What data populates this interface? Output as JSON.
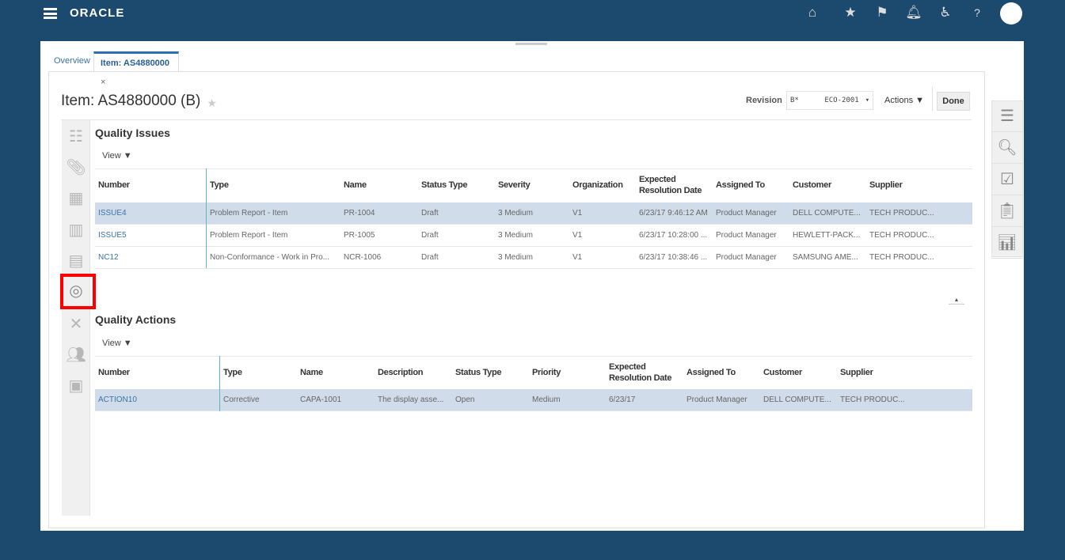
{
  "header": {
    "logo": "ORACLE",
    "icons": [
      "home-icon",
      "star-icon",
      "flag-icon",
      "bell-icon",
      "accessibility-icon",
      "help-icon"
    ]
  },
  "tabs": [
    {
      "label": "Overview"
    },
    {
      "label": "Item: AS4880000",
      "close": "×"
    }
  ],
  "page": {
    "title": "Item: AS4880000 (B)",
    "revision_label": "Revision",
    "revision_value": "B*      ECO-2001",
    "revision_arrow": "▾",
    "actions_label": "Actions ▼",
    "done_label": "Done"
  },
  "quality_issues": {
    "title": "Quality Issues",
    "view_label": "View ▼",
    "columns": [
      "Number",
      "Type",
      "Name",
      "Status Type",
      "Severity",
      "Organization",
      "Expected Resolution Date",
      "Assigned To",
      "Customer",
      "Supplier"
    ],
    "rows": [
      [
        "ISSUE4",
        "Problem Report - Item",
        "PR-1004",
        "Draft",
        "3 Medium",
        "V1",
        "6/23/17 9:46:12 AM",
        "Product Manager",
        "DELL COMPUTE...",
        "TECH PRODUC..."
      ],
      [
        "ISSUE5",
        "Problem Report - Item",
        "PR-1005",
        "Draft",
        "3 Medium",
        "V1",
        "6/23/17 10:28:00 ...",
        "Product Manager",
        "HEWLETT-PACK...",
        "TECH PRODUC..."
      ],
      [
        "NC12",
        "Non-Conformance - Work in Pro...",
        "NCR-1006",
        "Draft",
        "3 Medium",
        "V1",
        "6/23/17 10:38:46 ...",
        "Product Manager",
        "SAMSUNG AME...",
        "TECH PRODUC..."
      ]
    ],
    "selected_row": 0
  },
  "quality_actions": {
    "title": "Quality Actions",
    "view_label": "View ▼",
    "columns": [
      "Number",
      "Type",
      "Name",
      "Description",
      "Status Type",
      "Priority",
      "Expected Resolution Date",
      "Assigned To",
      "Customer",
      "Supplier"
    ],
    "rows": [
      [
        "ACTION10",
        "Corrective",
        "CAPA-1001",
        "The display asse...",
        "Open",
        "Medium",
        "6/23/17",
        "Product Manager",
        "DELL COMPUTE...",
        "TECH PRODUC..."
      ]
    ],
    "selected_row": 0
  },
  "left_rail_icons": [
    "overview-list-icon",
    "attachment-icon",
    "structure-icon",
    "manufacturers-icon",
    "change-orders-icon",
    "quality-icon",
    "relationships-icon",
    "team-icon",
    "calculator-icon"
  ],
  "selected_left_icon": "quality-icon",
  "right_rail_icons": [
    "document-icon",
    "search-icon",
    "checklist-icon",
    "clipboard-icon",
    "chart-icon"
  ],
  "colors": {
    "header_bg": "#1c4a6e",
    "selected_row": "#d0dcea",
    "link": "#3a74a8",
    "highlight_box": "#ff0000"
  }
}
